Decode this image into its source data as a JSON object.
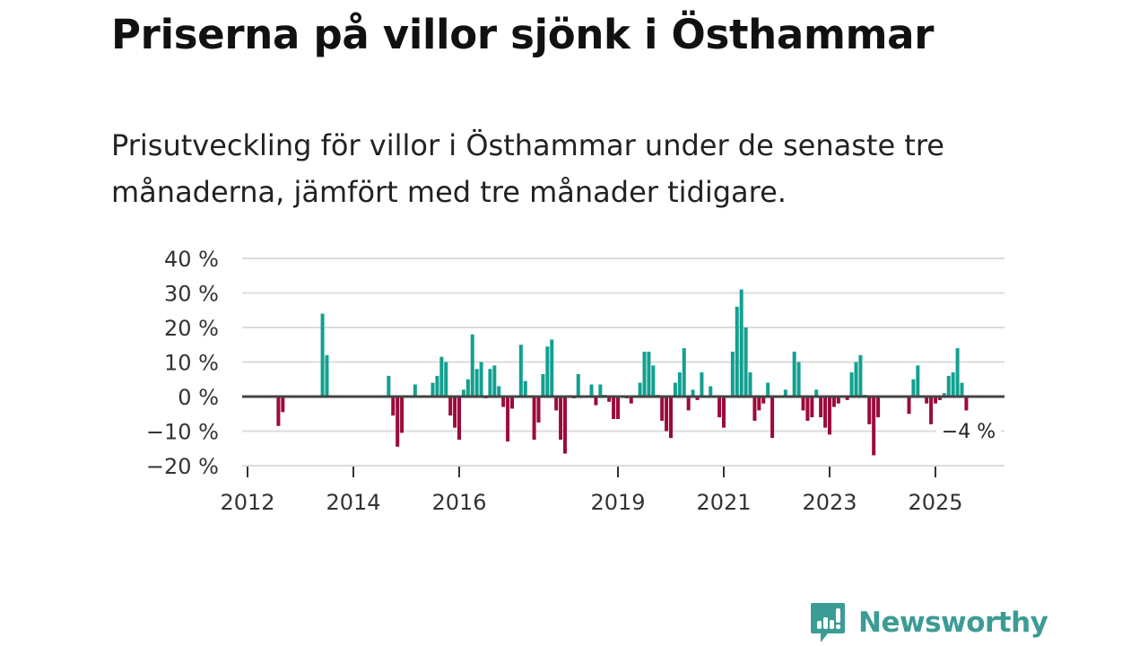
{
  "header": {
    "title": "Priserna på villor sjönk i Östhammar",
    "subtitle": "Prisutveckling för villor i Östhammar under de senaste tre månaderna, jämfört med tre månader tidigare."
  },
  "chart_data": {
    "type": "bar",
    "title": "Priserna på villor sjönk i Östhammar",
    "xlabel": "",
    "ylabel": "",
    "ylim": [
      -20,
      40
    ],
    "y_ticks": [
      40,
      30,
      20,
      10,
      0,
      -10,
      -20
    ],
    "y_tick_labels": [
      "40 %",
      "30 %",
      "20 %",
      "10 %",
      "0 %",
      "−10 %",
      "−20 %"
    ],
    "x_ticks": [
      {
        "label": "2012",
        "month_index": 0
      },
      {
        "label": "2014",
        "month_index": 24
      },
      {
        "label": "2016",
        "month_index": 48
      },
      {
        "label": "2019",
        "month_index": 84
      },
      {
        "label": "2021",
        "month_index": 108
      },
      {
        "label": "2023",
        "month_index": 132
      },
      {
        "label": "2025",
        "month_index": 156
      }
    ],
    "start_month": "2012-01",
    "frequency": "monthly",
    "grid": true,
    "positive_color": "#12a090",
    "negative_color": "#9c0a3c",
    "last_value_label": "−4 %",
    "values": [
      0,
      0,
      0,
      0,
      0,
      0,
      0,
      -8.5,
      -4.5,
      0,
      0,
      0,
      0,
      0,
      0,
      0,
      0,
      24,
      12,
      0,
      0,
      0,
      0,
      0,
      0,
      0,
      0,
      0,
      0,
      0,
      0,
      0,
      6,
      -5.5,
      -14.5,
      -10.5,
      0,
      0,
      3.5,
      0.3,
      0,
      0,
      4,
      6,
      11.5,
      10,
      -5.5,
      -9,
      -12.5,
      2,
      5,
      18,
      8,
      10,
      -0.5,
      8,
      9,
      3,
      -3,
      -13,
      -3.5,
      0,
      15,
      4.5,
      0,
      -12.5,
      -7.5,
      6.5,
      14.5,
      16.5,
      -4,
      -12.5,
      -16.5,
      0,
      -0.5,
      6.5,
      0,
      0,
      3.5,
      -2.5,
      3.5,
      0.5,
      -1.5,
      -6.5,
      -6.5,
      0,
      -0.5,
      -2,
      0,
      4,
      13,
      13,
      9,
      0.5,
      -7,
      -10,
      -12,
      4,
      7,
      14,
      -4,
      2,
      -1,
      7,
      0,
      3,
      0,
      -6,
      -9,
      0,
      13,
      26,
      31,
      20,
      7,
      -7,
      -4,
      -2,
      4,
      -12,
      0,
      0,
      2,
      0,
      13,
      10,
      -4,
      -7,
      -6,
      2,
      -6,
      -9,
      -11,
      -3,
      -2,
      0,
      -1,
      7,
      10,
      12,
      0.5,
      -8,
      -17,
      -6,
      0,
      0,
      0,
      0,
      0,
      0,
      -5,
      5,
      9,
      0,
      -2,
      -8,
      -2,
      -1,
      1,
      6,
      7,
      14,
      4,
      -4
    ]
  },
  "branding": {
    "logo_text": "Newsworthy",
    "color": "#3c9c95"
  }
}
